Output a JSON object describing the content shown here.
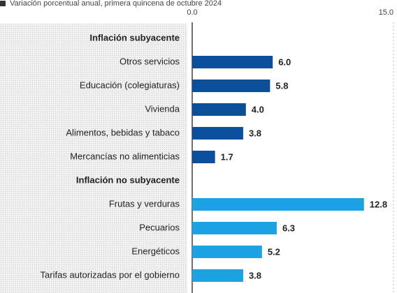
{
  "chart_data": {
    "type": "bar",
    "orientation": "horizontal",
    "subtitle": "Variación porcentual anual, primera quincena de octubre 2024",
    "categories": [
      "Inflación subyacente",
      "Otros servicios",
      "Educación (colegiaturas)",
      "Vivienda",
      "Alimentos, bebidas y tabaco",
      "Mercancías no alimenticias",
      "Inflación no subyacente",
      "Frutas y verduras",
      "Pecuarios",
      "Energéticos",
      "Tarifas autorizadas por el gobierno"
    ],
    "values": [
      null,
      6.0,
      5.8,
      4.0,
      3.8,
      1.7,
      null,
      12.8,
      6.3,
      5.2,
      3.8
    ],
    "value_labels": [
      null,
      "6.0",
      "5.8",
      "4.0",
      "3.8",
      "1.7",
      null,
      "12.8",
      "6.3",
      "5.2",
      "3.8"
    ],
    "colors": [
      null,
      "#0b4f9c",
      "#0b4f9c",
      "#0b4f9c",
      "#0b4f9c",
      "#0b4f9c",
      null,
      "#1ba3e3",
      "#1ba3e3",
      "#1ba3e3",
      "#1ba3e3"
    ],
    "xlim": [
      0,
      15
    ],
    "xticks": [
      {
        "value": 0,
        "label": "0.0"
      },
      {
        "value": 15,
        "label": "15.0"
      }
    ],
    "grid": true
  }
}
